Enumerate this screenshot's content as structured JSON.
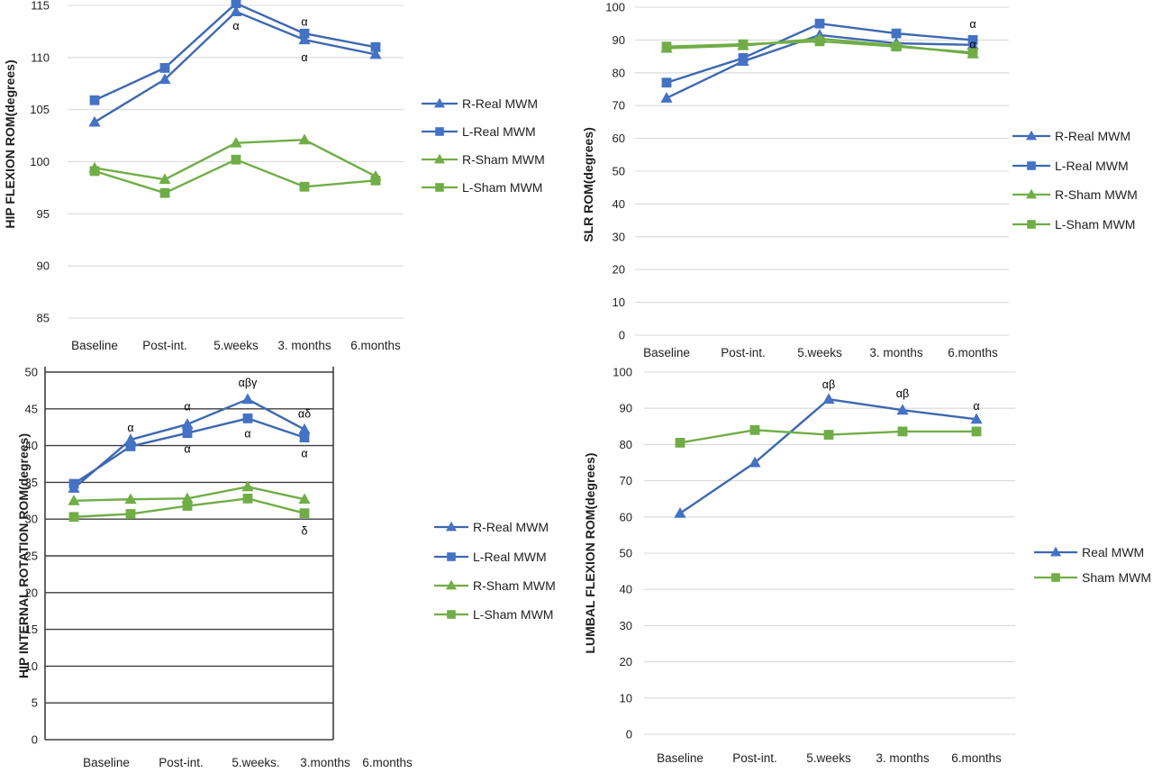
{
  "figure": {
    "description": "Four-panel line chart figure of ROM outcomes across assessment points",
    "background": "#FFFFFF"
  },
  "colors": {
    "real_mwm_blue": "#4472C4",
    "real_mwm_blue_line": "#3E68B0",
    "sham_mwm_green": "#70AD47",
    "grid_light": "#D9D9D9",
    "grid_dark": "#3F3F3F",
    "text": "#1F1F1F",
    "annotation": "#000000"
  },
  "chart_data": [
    {
      "id": "hip-flexion-rom",
      "type": "line",
      "title": "",
      "ylabel": "HIP FLEXION ROM(degrees)",
      "xlabel": "",
      "categories": [
        "Baseline",
        "Post-int.",
        "5.weeks",
        "3. months",
        "6.months"
      ],
      "ylim": [
        85,
        115
      ],
      "yticks": [
        115,
        110,
        105,
        100,
        95,
        90,
        85
      ],
      "grid": "horizontal-light",
      "legend_position": "right",
      "series": [
        {
          "name": "R-Real MWM",
          "marker": "triangle",
          "color": "#4472C4",
          "values": [
            103.8,
            107.9,
            114.4,
            111.7,
            110.3
          ]
        },
        {
          "name": "L-Real MWM",
          "marker": "square",
          "color": "#4472C4",
          "values": [
            105.9,
            109.0,
            115.2,
            112.3,
            111.0
          ]
        },
        {
          "name": "R-Sham MWM",
          "marker": "triangle",
          "color": "#70AD47",
          "values": [
            99.4,
            98.3,
            101.8,
            102.1,
            98.6
          ]
        },
        {
          "name": "L-Sham MWM",
          "marker": "square",
          "color": "#70AD47",
          "values": [
            99.1,
            97.0,
            100.2,
            97.6,
            98.2
          ]
        }
      ],
      "annotations": [
        {
          "text": "α",
          "category_index": 2,
          "value": 113.0
        },
        {
          "text": "α",
          "category_index": 3,
          "value": 113.4
        },
        {
          "text": "α",
          "category_index": 3,
          "value": 110.0
        }
      ],
      "legend": [
        "R-Real MWM",
        "L-Real MWM",
        "R-Sham MWM",
        "L-Sham MWM"
      ]
    },
    {
      "id": "slr-rom",
      "type": "line",
      "title": "",
      "ylabel": "SLR ROM(degrees)",
      "xlabel": "",
      "categories": [
        "Baseline",
        "Post-int.",
        "5.weeks",
        "3. months",
        "6.months"
      ],
      "ylim": [
        0,
        100
      ],
      "yticks": [
        100,
        90,
        80,
        70,
        60,
        50,
        40,
        30,
        20,
        10,
        0
      ],
      "grid": "horizontal-light",
      "legend_position": "right",
      "series": [
        {
          "name": "R-Real MWM",
          "marker": "triangle",
          "color": "#4472C4",
          "values": [
            72.3,
            83.5,
            91.5,
            89.0,
            88.5
          ]
        },
        {
          "name": "L-Real MWM",
          "marker": "square",
          "color": "#4472C4",
          "values": [
            77.0,
            84.5,
            95.0,
            92.0,
            90.0
          ]
        },
        {
          "name": "R-Sham MWM",
          "marker": "triangle",
          "color": "#70AD47",
          "values": [
            87.5,
            88.3,
            90.4,
            88.3,
            85.8
          ]
        },
        {
          "name": "L-Sham MWM",
          "marker": "square",
          "color": "#70AD47",
          "values": [
            88.0,
            88.7,
            89.6,
            88.0,
            86.2
          ]
        }
      ],
      "annotations": [
        {
          "text": "α",
          "category_index": 4,
          "value": 94.8
        },
        {
          "text": "α",
          "category_index": 4,
          "value": 88.6
        }
      ],
      "legend": [
        "R-Real MWM",
        "L-Real MWM",
        "R-Sham MWM",
        "L-Sham MWM"
      ]
    },
    {
      "id": "hip-internal-rotation-rom",
      "type": "line",
      "title": "",
      "ylabel": "HIP INTERNAL ROTATION ROM(degrees)",
      "xlabel": "",
      "categories": [
        "Baseline",
        "Post-int.",
        "5.weeks.",
        "3.months",
        "6.months"
      ],
      "ylim": [
        0,
        50
      ],
      "yticks": [
        50,
        45,
        40,
        35,
        30,
        25,
        20,
        15,
        10,
        5,
        0
      ],
      "grid": "horizontal-dark",
      "legend_position": "right",
      "series": [
        {
          "name": "R-Real MWM",
          "marker": "triangle",
          "color": "#4472C4",
          "values": [
            34.2,
            40.8,
            42.9,
            46.3,
            42.2
          ]
        },
        {
          "name": "L-Real MWM",
          "marker": "square",
          "color": "#4472C4",
          "values": [
            34.8,
            39.9,
            41.7,
            43.7,
            41.1
          ]
        },
        {
          "name": "R-Sham MWM",
          "marker": "triangle",
          "color": "#70AD47",
          "values": [
            32.5,
            32.7,
            32.8,
            34.4,
            32.7
          ]
        },
        {
          "name": "L-Sham MWM",
          "marker": "square",
          "color": "#70AD47",
          "values": [
            30.3,
            30.7,
            31.8,
            32.8,
            30.8
          ]
        }
      ],
      "annotations": [
        {
          "text": "α",
          "category_index": 1,
          "value": 42.4
        },
        {
          "text": "α",
          "category_index": 2,
          "value": 45.3
        },
        {
          "text": "α",
          "category_index": 2,
          "value": 39.5
        },
        {
          "text": "αβγ",
          "category_index": 3,
          "value": 48.5
        },
        {
          "text": "α",
          "category_index": 3,
          "value": 41.6
        },
        {
          "text": "αδ",
          "category_index": 4,
          "value": 44.3
        },
        {
          "text": "α",
          "category_index": 4,
          "value": 38.9
        },
        {
          "text": "δ",
          "category_index": 4,
          "value": 28.4
        }
      ],
      "legend": [
        "R-Real MWM",
        "L-Real MWM",
        "R-Sham MWM",
        "L-Sham MWM"
      ]
    },
    {
      "id": "lumbal-flexion-rom",
      "type": "line",
      "title": "",
      "ylabel": "LUMBAL FLEXION ROM(degrees)",
      "xlabel": "",
      "categories": [
        "Baseline",
        "Post-int.",
        "5.weeks",
        "3. months",
        "6.months"
      ],
      "ylim": [
        0,
        100
      ],
      "yticks": [
        100,
        90,
        80,
        70,
        60,
        50,
        40,
        30,
        20,
        10,
        0
      ],
      "grid": "horizontal-light",
      "legend_position": "right",
      "series": [
        {
          "name": "Real MWM",
          "marker": "triangle",
          "color": "#4472C4",
          "values": [
            61.0,
            75.0,
            92.5,
            89.5,
            87.0
          ]
        },
        {
          "name": "Sham MWM",
          "marker": "square",
          "color": "#70AD47",
          "values": [
            80.5,
            84.0,
            82.7,
            83.6,
            83.6
          ]
        }
      ],
      "annotations": [
        {
          "text": "αβ",
          "category_index": 2,
          "value": 96.5
        },
        {
          "text": "αβ",
          "category_index": 3,
          "value": 94.0
        },
        {
          "text": "α",
          "category_index": 4,
          "value": 90.5
        }
      ],
      "legend": [
        "Real MWM",
        "Sham MWM"
      ]
    }
  ]
}
